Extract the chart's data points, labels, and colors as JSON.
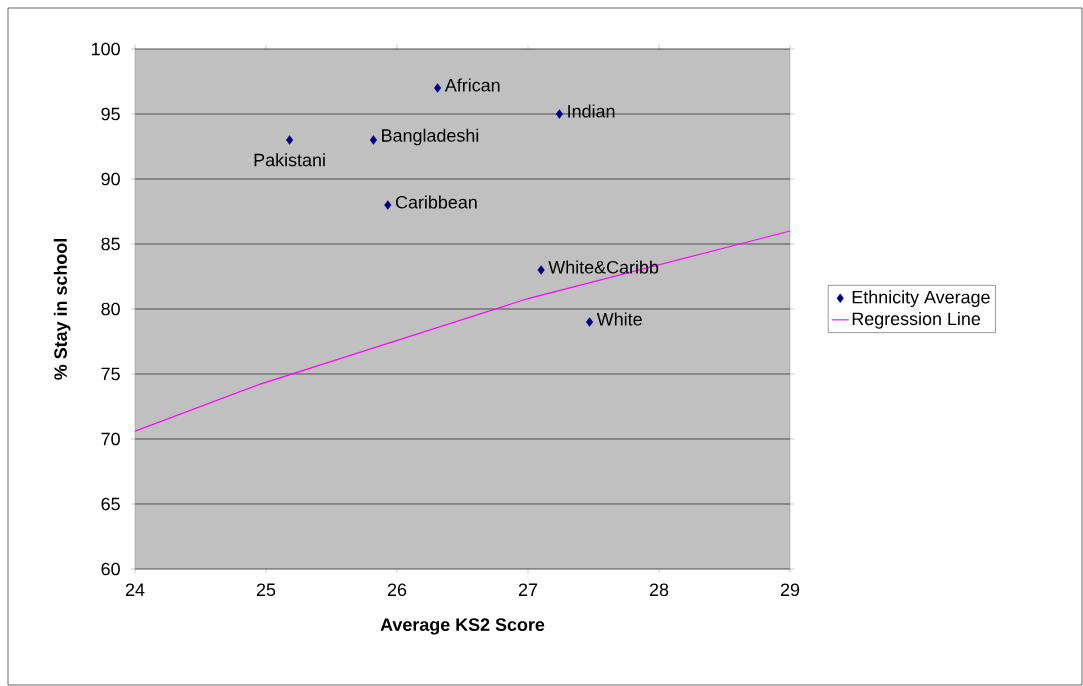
{
  "chart_data": {
    "type": "scatter",
    "xlabel": "Average KS2 Score",
    "ylabel": "% Stay in school",
    "xlim": [
      24,
      29
    ],
    "ylim": [
      60,
      100
    ],
    "xticks": [
      24,
      25,
      26,
      27,
      28,
      29
    ],
    "yticks": [
      60,
      65,
      70,
      75,
      80,
      85,
      90,
      95,
      100
    ],
    "grid": "y",
    "legend": "right",
    "marker": "diamond",
    "series": [
      {
        "name": "Ethnicity Average",
        "color": "#000080",
        "x": [
          25.18,
          25.82,
          26.31,
          25.93,
          27.24,
          27.1,
          27.47
        ],
        "values": [
          93,
          93,
          97,
          88,
          95,
          83,
          79
        ]
      },
      {
        "name": "Regression Line",
        "type": "line",
        "color": "#ff00ff",
        "marker": "none",
        "line_style": "solid",
        "x": [
          24,
          24.95,
          27,
          29
        ],
        "values": [
          70.6,
          74.2,
          80.8,
          86
        ]
      }
    ],
    "annotations": [
      {
        "text": "Pakistani",
        "x": 25.18,
        "y": 93
      },
      {
        "text": "Bangladeshi",
        "x": 25.82,
        "y": 93
      },
      {
        "text": "African",
        "x": 26.31,
        "y": 97
      },
      {
        "text": "Caribbean",
        "x": 25.93,
        "y": 88
      },
      {
        "text": "Indian",
        "x": 27.24,
        "y": 95
      },
      {
        "text": "White&Caribb",
        "x": 27.1,
        "y": 83
      },
      {
        "text": "White",
        "x": 27.47,
        "y": 79
      }
    ]
  }
}
